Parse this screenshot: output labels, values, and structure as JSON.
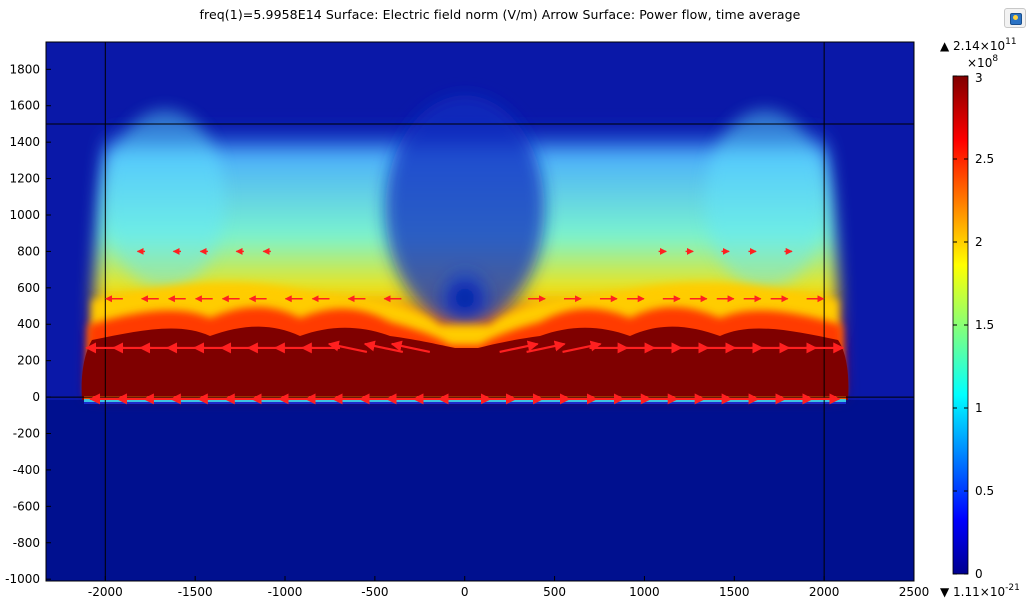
{
  "title": "freq(1)=5.9958E14   Surface: Electric field norm (V/m)  Arrow Surface: Power flow, time average",
  "toolbar_icon": "comsol-logo-icon",
  "chart_data": {
    "type": "heatmap",
    "surface_quantity": "Electric field norm (V/m)",
    "arrow_quantity": "Power flow, time average",
    "frequency": "freq(1)=5.9958E14",
    "xlim": [
      -2330,
      2500
    ],
    "ylim": [
      -1010,
      1950
    ],
    "x_ticks": [
      -2000,
      -1500,
      -1000,
      -500,
      0,
      500,
      1000,
      1500,
      2000,
      2500
    ],
    "y_ticks": [
      -1000,
      -800,
      -600,
      -400,
      -200,
      0,
      200,
      400,
      600,
      800,
      1000,
      1200,
      1400,
      1600,
      1800
    ],
    "x_tick_labels": [
      "-2000",
      "-1500",
      "-1000",
      "-500",
      "0",
      "500",
      "1000",
      "1500",
      "2000",
      "2500"
    ],
    "y_tick_labels": [
      "-1000",
      "-800",
      "-600",
      "-400",
      "-200",
      "0",
      "200",
      "400",
      "600",
      "800",
      "1000",
      "1200",
      "1400",
      "1600",
      "1800"
    ],
    "geometry_lines": {
      "horizontal_y": [
        0,
        1500
      ],
      "vertical_x": [
        -2000,
        2000
      ]
    },
    "field_profile": {
      "strong_layer_y": [
        0,
        280
      ],
      "strong_layer_x": [
        -2100,
        2100
      ],
      "max_shown_value": 3,
      "decay_top_y": 1550
    },
    "arrow_rows": [
      {
        "y": 270,
        "x": [
          -2000,
          -1850,
          -1700,
          -1550,
          -1400,
          -1250,
          -1100,
          -950,
          -800,
          -650,
          -450,
          -300,
          300,
          450,
          650,
          800,
          950,
          1100,
          1250,
          1400,
          1550,
          1700,
          1850,
          2000
        ],
        "dir": "outward",
        "length": 1.0
      },
      {
        "y": -10,
        "x": [
          -2000,
          -1850,
          -1700,
          -1550,
          -1400,
          -1250,
          -1100,
          -950,
          -800,
          -650,
          -500,
          -350,
          -200,
          -60,
          60,
          200,
          350,
          500,
          650,
          800,
          950,
          1100,
          1250,
          1400,
          1550,
          1700,
          1850,
          2000
        ],
        "dir": "outward",
        "length": 0.8
      },
      {
        "y": 540,
        "x": [
          -1950,
          -1750,
          -1600,
          -1450,
          -1300,
          -1150,
          -950,
          -800,
          -600,
          -400,
          400,
          600,
          800,
          950,
          1150,
          1300,
          1450,
          1600,
          1750,
          1950
        ],
        "dir": "outward",
        "length": 0.45
      },
      {
        "y": 800,
        "x": [
          -1800,
          -1600,
          -1450,
          -1250,
          -1100,
          1100,
          1250,
          1450,
          1600,
          1800
        ],
        "dir": "outward",
        "length": 0.2
      }
    ],
    "colorbar": {
      "colormap": "rainbow",
      "min": 0,
      "max": 3,
      "multiplier": "×10",
      "multiplier_exp": "8",
      "ticks": [
        0,
        0.5,
        1,
        1.5,
        2,
        2.5,
        3
      ],
      "tick_labels": [
        "0",
        "0.5",
        "1",
        "1.5",
        "2",
        "2.5",
        "3"
      ],
      "max_value_text": "2.14×10",
      "max_value_exp": "11",
      "min_value_text": "1.11×10",
      "min_value_exp": "-21"
    },
    "colors": {
      "background_field": "#0a14a0",
      "deep_low": "#00008f",
      "high": "#7f0000",
      "arrow": "#ff2020",
      "geometry": "#000000"
    }
  }
}
